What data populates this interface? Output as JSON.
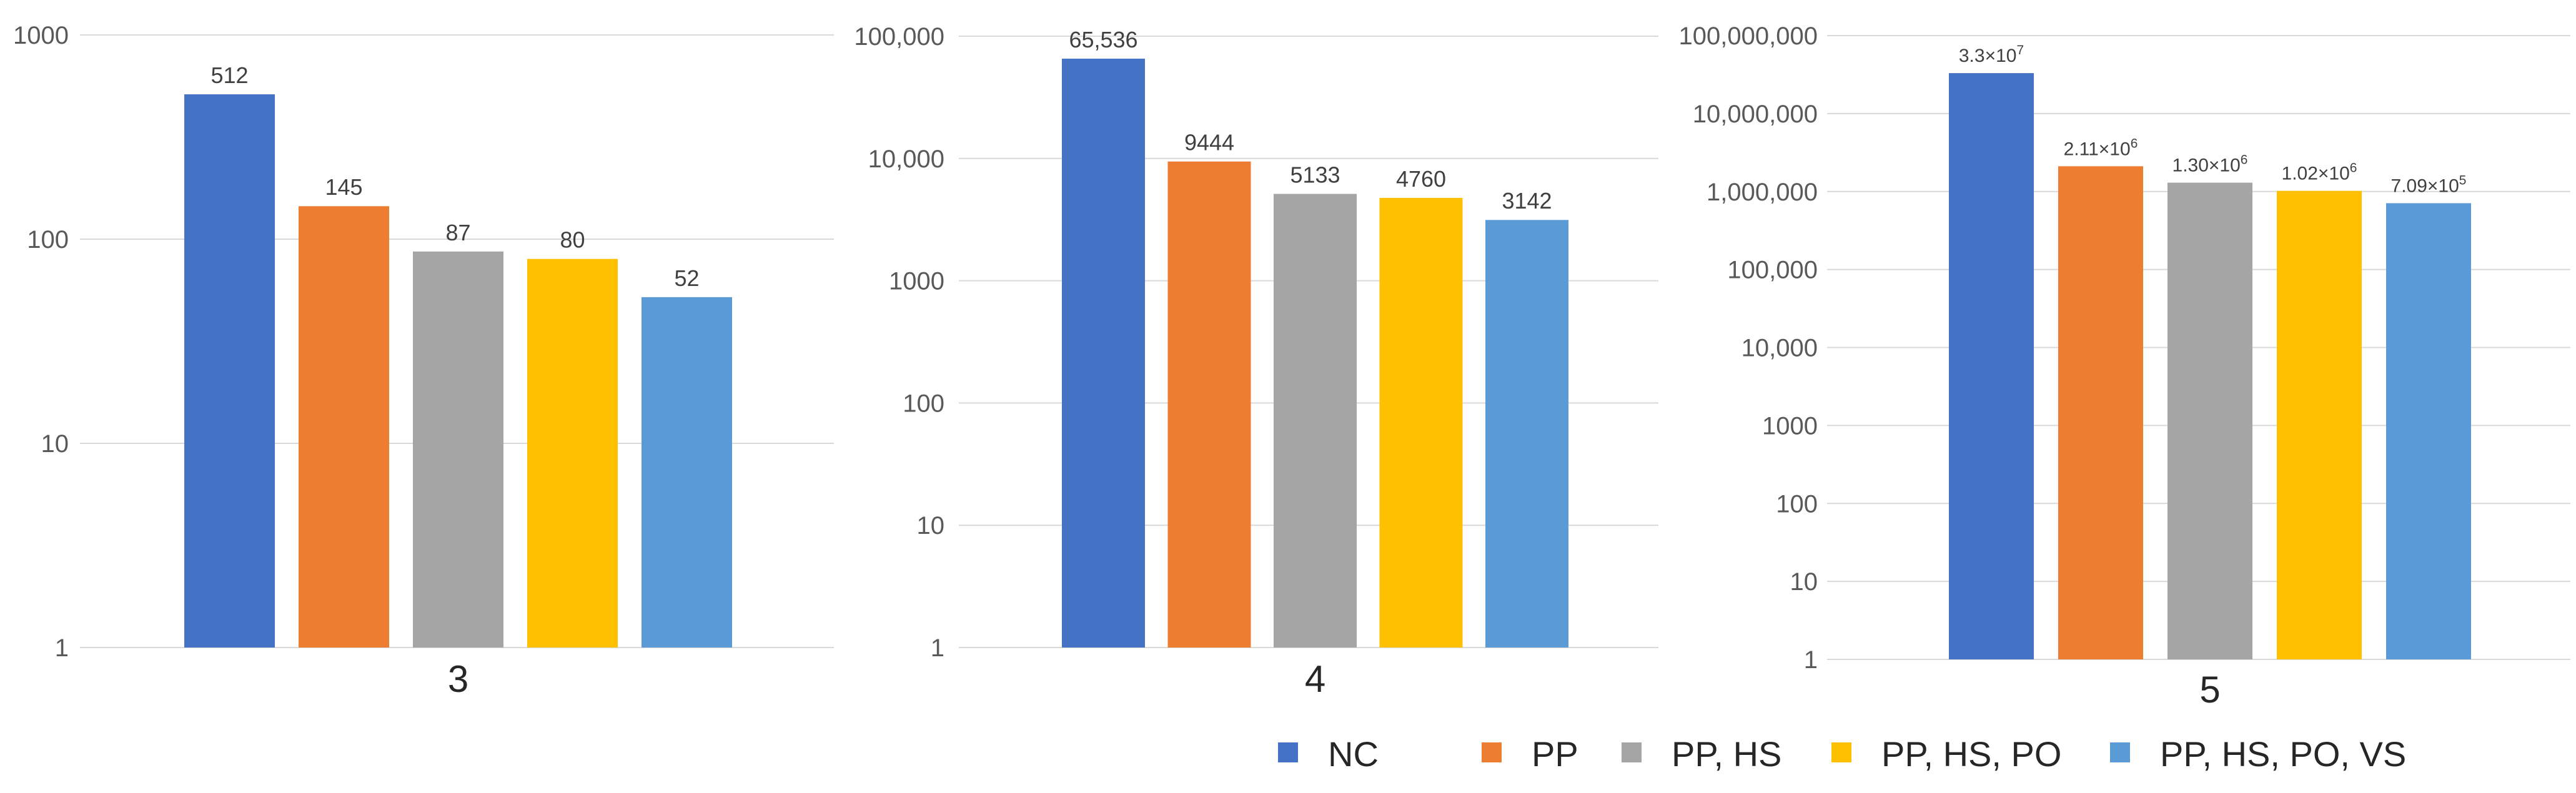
{
  "colors": {
    "series": [
      "#4472C4",
      "#ED7D31",
      "#A5A5A5",
      "#FFC000",
      "#5B9BD5"
    ],
    "grid": "#D9D9D9",
    "tick_text": "#595959",
    "label_text": "#404040"
  },
  "legend": {
    "placement": "bottom",
    "items": [
      "NC",
      "PP",
      "PP, HS",
      "PP, HS, PO",
      "PP, HS, PO, VS"
    ]
  },
  "chart_data": [
    {
      "type": "bar",
      "scale": "log",
      "grid": true,
      "categories": [
        "3"
      ],
      "ylim": [
        1,
        1000
      ],
      "yticks": [
        1,
        10,
        100,
        1000
      ],
      "ytick_labels": [
        "1",
        "10",
        "100",
        "1000"
      ],
      "series": [
        {
          "name": "NC",
          "values": [
            512
          ],
          "label": "512"
        },
        {
          "name": "PP",
          "values": [
            145
          ],
          "label": "145"
        },
        {
          "name": "PP, HS",
          "values": [
            87
          ],
          "label": "87"
        },
        {
          "name": "PP, HS, PO",
          "values": [
            80
          ],
          "label": "80"
        },
        {
          "name": "PP, HS, PO, VS",
          "values": [
            52
          ],
          "label": "52"
        }
      ]
    },
    {
      "type": "bar",
      "scale": "log",
      "grid": true,
      "categories": [
        "4"
      ],
      "ylim": [
        1,
        100000
      ],
      "yticks": [
        1,
        10,
        100,
        1000,
        10000,
        100000
      ],
      "ytick_labels": [
        "1",
        "10",
        "100",
        "1000",
        "10,000",
        "100,000"
      ],
      "series": [
        {
          "name": "NC",
          "values": [
            65536
          ],
          "label": "65,536"
        },
        {
          "name": "PP",
          "values": [
            9444
          ],
          "label": "9444"
        },
        {
          "name": "PP, HS",
          "values": [
            5133
          ],
          "label": "5133"
        },
        {
          "name": "PP, HS, PO",
          "values": [
            4760
          ],
          "label": "4760"
        },
        {
          "name": "PP, HS, PO, VS",
          "values": [
            3142
          ],
          "label": "3142"
        }
      ]
    },
    {
      "type": "bar",
      "scale": "log",
      "grid": true,
      "categories": [
        "5"
      ],
      "ylim": [
        1,
        100000000
      ],
      "yticks": [
        1,
        10,
        100,
        1000,
        10000,
        100000,
        1000000,
        10000000,
        100000000
      ],
      "ytick_labels": [
        "1",
        "10",
        "100",
        "1000",
        "10,000",
        "100,000",
        "1,000,000",
        "10,000,000",
        "100,000,000"
      ],
      "series": [
        {
          "name": "NC",
          "values": [
            33000000
          ],
          "label": {
            "mantissa": "3.3×10",
            "exp": "7"
          }
        },
        {
          "name": "PP",
          "values": [
            2110000
          ],
          "label": {
            "mantissa": "2.11×10",
            "exp": "6"
          }
        },
        {
          "name": "PP, HS",
          "values": [
            1300000
          ],
          "label": {
            "mantissa": "1.30×10",
            "exp": "6"
          }
        },
        {
          "name": "PP, HS, PO",
          "values": [
            1020000
          ],
          "label": {
            "mantissa": "1.02×10",
            "exp": "6"
          }
        },
        {
          "name": "PP, HS, PO, VS",
          "values": [
            709000
          ],
          "label": {
            "mantissa": "7.09×10",
            "exp": "5"
          }
        }
      ]
    }
  ]
}
